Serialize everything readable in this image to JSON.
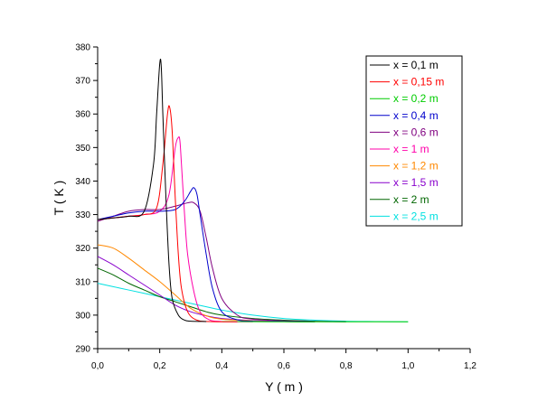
{
  "chart_data": {
    "type": "line",
    "xlabel": "Y ( m )",
    "ylabel": "T ( K )",
    "xlim": [
      0.0,
      1.2
    ],
    "ylim": [
      290,
      380
    ],
    "x_ticks": [
      "0,0",
      "0,2",
      "0,4",
      "0,6",
      "0,8",
      "1,0",
      "1,2"
    ],
    "y_ticks": [
      "290",
      "300",
      "310",
      "320",
      "330",
      "340",
      "350",
      "360",
      "370",
      "380"
    ],
    "grid": false,
    "legend_position": "top-right",
    "series": [
      {
        "name": "x = 0,1 m",
        "color": "#000000",
        "points": [
          [
            0,
            328.5
          ],
          [
            0.05,
            329
          ],
          [
            0.1,
            329.5
          ],
          [
            0.15,
            331
          ],
          [
            0.18,
            345
          ],
          [
            0.19,
            360
          ],
          [
            0.2,
            375
          ],
          [
            0.205,
            374
          ],
          [
            0.21,
            360
          ],
          [
            0.22,
            335
          ],
          [
            0.23,
            315
          ],
          [
            0.24,
            305
          ],
          [
            0.26,
            300
          ],
          [
            0.28,
            298.5
          ],
          [
            0.3,
            298.2
          ],
          [
            0.35,
            298.1
          ]
        ]
      },
      {
        "name": "x = 0,15 m",
        "color": "#ff0000",
        "points": [
          [
            0,
            328.5
          ],
          [
            0.05,
            329
          ],
          [
            0.1,
            329.5
          ],
          [
            0.15,
            330
          ],
          [
            0.19,
            332
          ],
          [
            0.21,
            345
          ],
          [
            0.225,
            360
          ],
          [
            0.232,
            362
          ],
          [
            0.24,
            355
          ],
          [
            0.25,
            335
          ],
          [
            0.26,
            318
          ],
          [
            0.27,
            308
          ],
          [
            0.29,
            301
          ],
          [
            0.32,
            298.5
          ],
          [
            0.36,
            298.1
          ],
          [
            0.45,
            298
          ]
        ]
      },
      {
        "name": "x = 0,2 m",
        "color": "#00cc00",
        "points": [
          [
            0.4,
            298.1
          ],
          [
            0.5,
            298.05
          ],
          [
            0.6,
            298
          ],
          [
            0.7,
            298
          ],
          [
            0.8,
            298
          ],
          [
            1.0,
            298
          ]
        ]
      },
      {
        "name": "x = 0,4 m",
        "color": "#0000cc",
        "points": [
          [
            0,
            328.5
          ],
          [
            0.05,
            329.5
          ],
          [
            0.1,
            330.5
          ],
          [
            0.15,
            331
          ],
          [
            0.2,
            331
          ],
          [
            0.25,
            331.5
          ],
          [
            0.28,
            334
          ],
          [
            0.3,
            337
          ],
          [
            0.31,
            338
          ],
          [
            0.32,
            336
          ],
          [
            0.33,
            330
          ],
          [
            0.35,
            318
          ],
          [
            0.37,
            308
          ],
          [
            0.4,
            301
          ],
          [
            0.45,
            298.6
          ],
          [
            0.5,
            298.2
          ],
          [
            0.6,
            298.1
          ],
          [
            0.7,
            298
          ]
        ]
      },
      {
        "name": "x = 0,6 m",
        "color": "#800080",
        "points": [
          [
            0,
            328
          ],
          [
            0.05,
            329.5
          ],
          [
            0.1,
            331
          ],
          [
            0.15,
            331.5
          ],
          [
            0.2,
            331.5
          ],
          [
            0.25,
            332.5
          ],
          [
            0.29,
            333.5
          ],
          [
            0.31,
            333.5
          ],
          [
            0.33,
            331
          ],
          [
            0.35,
            323
          ],
          [
            0.37,
            314
          ],
          [
            0.4,
            305
          ],
          [
            0.45,
            300
          ],
          [
            0.5,
            298.8
          ],
          [
            0.6,
            298.3
          ],
          [
            0.7,
            298.1
          ],
          [
            0.8,
            298
          ]
        ]
      },
      {
        "name": "x = 1 m",
        "color": "#ff00aa",
        "points": [
          [
            0,
            328.5
          ],
          [
            0.05,
            329
          ],
          [
            0.1,
            329.5
          ],
          [
            0.15,
            330
          ],
          [
            0.2,
            331
          ],
          [
            0.23,
            336
          ],
          [
            0.25,
            350
          ],
          [
            0.26,
            353
          ],
          [
            0.265,
            352
          ],
          [
            0.27,
            345
          ],
          [
            0.28,
            330
          ],
          [
            0.29,
            318
          ],
          [
            0.31,
            307
          ],
          [
            0.33,
            301
          ],
          [
            0.36,
            298.6
          ],
          [
            0.4,
            298.1
          ],
          [
            0.5,
            298
          ]
        ]
      },
      {
        "name": "x = 1,2 m",
        "color": "#ff8800",
        "points": [
          [
            0,
            321
          ],
          [
            0.05,
            320
          ],
          [
            0.1,
            317
          ],
          [
            0.15,
            313.5
          ],
          [
            0.2,
            310
          ],
          [
            0.25,
            306
          ],
          [
            0.3,
            302
          ],
          [
            0.35,
            299.8
          ],
          [
            0.4,
            298.8
          ],
          [
            0.5,
            298.3
          ],
          [
            0.6,
            298.1
          ],
          [
            0.7,
            298
          ]
        ]
      },
      {
        "name": "x = 1,5 m",
        "color": "#8800cc",
        "points": [
          [
            0,
            317.5
          ],
          [
            0.05,
            315
          ],
          [
            0.1,
            312
          ],
          [
            0.15,
            309
          ],
          [
            0.2,
            306
          ],
          [
            0.25,
            303
          ],
          [
            0.3,
            301
          ],
          [
            0.35,
            299.8
          ],
          [
            0.4,
            299
          ],
          [
            0.5,
            298.4
          ],
          [
            0.6,
            298.1
          ],
          [
            0.7,
            298
          ]
        ]
      },
      {
        "name": "x = 2 m",
        "color": "#006600",
        "points": [
          [
            0,
            314
          ],
          [
            0.05,
            312
          ],
          [
            0.1,
            309.5
          ],
          [
            0.15,
            307.5
          ],
          [
            0.2,
            305.5
          ],
          [
            0.25,
            304
          ],
          [
            0.3,
            302.5
          ],
          [
            0.35,
            301
          ],
          [
            0.4,
            300
          ],
          [
            0.5,
            299
          ],
          [
            0.6,
            298.5
          ],
          [
            0.7,
            298.2
          ],
          [
            0.8,
            298
          ]
        ]
      },
      {
        "name": "x = 2,5 m",
        "color": "#00e0e0",
        "points": [
          [
            0,
            309.5
          ],
          [
            0.05,
            308.5
          ],
          [
            0.1,
            307.5
          ],
          [
            0.15,
            306.5
          ],
          [
            0.2,
            305.5
          ],
          [
            0.25,
            304.5
          ],
          [
            0.3,
            303.5
          ],
          [
            0.35,
            302.5
          ],
          [
            0.4,
            301.5
          ],
          [
            0.5,
            300
          ],
          [
            0.6,
            299
          ],
          [
            0.7,
            298.5
          ],
          [
            0.8,
            298.2
          ],
          [
            0.9,
            298.1
          ],
          [
            1.0,
            298
          ]
        ]
      }
    ]
  }
}
